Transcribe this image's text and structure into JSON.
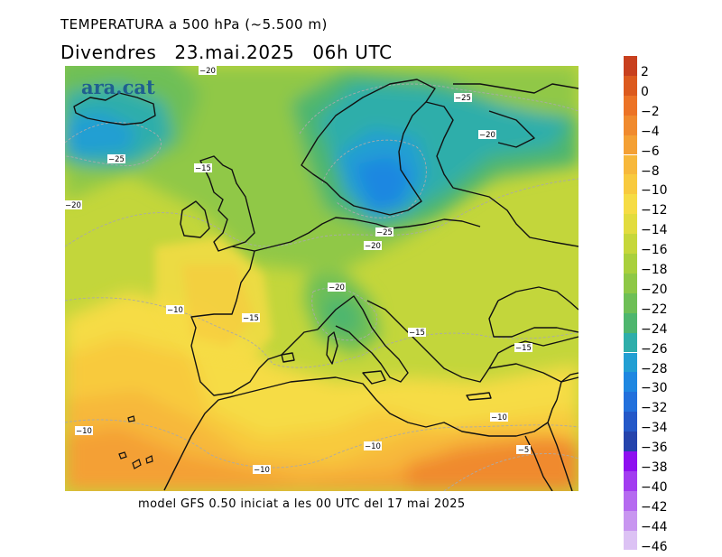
{
  "header": {
    "title": "TEMPERATURA a 500 hPa (~5.500 m)",
    "day": "Divendres",
    "date": "23.mai.2025",
    "time": "06h UTC"
  },
  "logo": {
    "text": "ara.cat"
  },
  "footer": {
    "text": "model GFS 0.50 iniciat a les 00 UTC del 17 mai 2025"
  },
  "legend": {
    "title": "",
    "unit": "",
    "items": [
      {
        "label": "2",
        "color": "#c8401e"
      },
      {
        "label": "0",
        "color": "#dc5a1e"
      },
      {
        "label": "−2",
        "color": "#ec7326"
      },
      {
        "label": "−4",
        "color": "#f08a2e"
      },
      {
        "label": "−6",
        "color": "#f4a034"
      },
      {
        "label": "−8",
        "color": "#f7b83b"
      },
      {
        "label": "−10",
        "color": "#f8ca3e"
      },
      {
        "label": "−12",
        "color": "#f6dc44"
      },
      {
        "label": "−14",
        "color": "#e2dc3e"
      },
      {
        "label": "−16",
        "color": "#c6d73a"
      },
      {
        "label": "−18",
        "color": "#a9d03c"
      },
      {
        "label": "−20",
        "color": "#8ec846"
      },
      {
        "label": "−22",
        "color": "#6ebf56"
      },
      {
        "label": "−24",
        "color": "#4eb66e"
      },
      {
        "label": "−26",
        "color": "#2eaeaa"
      },
      {
        "label": "−28",
        "color": "#229fd3"
      },
      {
        "label": "−30",
        "color": "#1e87e1"
      },
      {
        "label": "−32",
        "color": "#2270dc"
      },
      {
        "label": "−34",
        "color": "#2458c8"
      },
      {
        "label": "−36",
        "color": "#2543ac"
      },
      {
        "label": "−38",
        "color": "#8e10f0"
      },
      {
        "label": "−40",
        "color": "#a23cf0"
      },
      {
        "label": "−42",
        "color": "#b56af0"
      },
      {
        "label": "−44",
        "color": "#c896f0"
      },
      {
        "label": "−46",
        "color": "#dcc2f4"
      }
    ]
  },
  "contour_labels": [
    {
      "text": "−20"
    },
    {
      "text": "−25"
    },
    {
      "text": "−20"
    },
    {
      "text": "−25"
    },
    {
      "text": "−15"
    },
    {
      "text": "−20"
    },
    {
      "text": "−25"
    },
    {
      "text": "−20"
    },
    {
      "text": "−20"
    },
    {
      "text": "−10"
    },
    {
      "text": "−15"
    },
    {
      "text": "−15"
    },
    {
      "text": "−15"
    },
    {
      "text": "−10"
    },
    {
      "text": "−10"
    },
    {
      "text": "−5"
    },
    {
      "text": "−10"
    },
    {
      "text": "−10"
    }
  ],
  "colors": {
    "coast": "#111111",
    "contour": "#aaaaaa"
  }
}
